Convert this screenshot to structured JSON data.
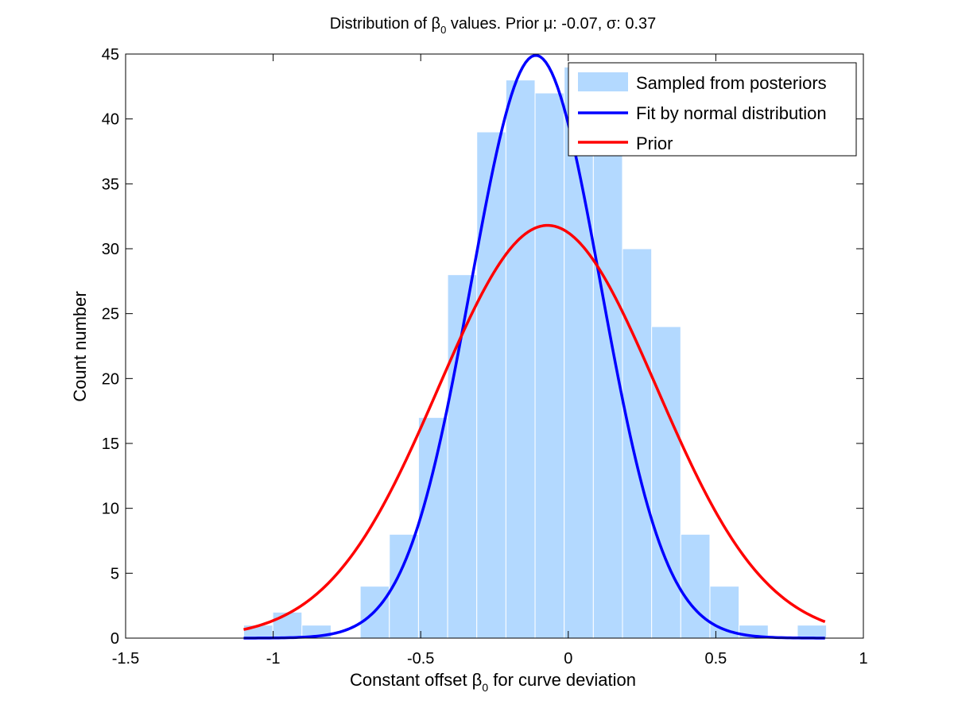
{
  "chart_data": {
    "type": "bar",
    "title": {
      "main": "Distribution of β",
      "sub": "0",
      "rest": " values. Prior μ: -0.07, σ: 0.37"
    },
    "xlabel": {
      "main": "Constant offset β",
      "sub": "0",
      "rest": " for curve deviation"
    },
    "ylabel": "Count number",
    "xlim": [
      -1.5,
      1
    ],
    "ylim": [
      0,
      45
    ],
    "xticks": [
      -1.5,
      -1,
      -0.5,
      0,
      0.5,
      1
    ],
    "xtick_labels": [
      "-1.5",
      "-1",
      "-0.5",
      "0",
      "0.5",
      "1"
    ],
    "yticks": [
      0,
      5,
      10,
      15,
      20,
      25,
      30,
      35,
      40,
      45
    ],
    "ytick_labels": [
      "0",
      "5",
      "10",
      "15",
      "20",
      "25",
      "30",
      "35",
      "40",
      "45"
    ],
    "grid": false,
    "legend_position": "top-right",
    "histogram": {
      "name": "Sampled from posteriors",
      "color": "#b3d9ff",
      "bin_start": -1.1,
      "bin_width": 0.09875,
      "counts": [
        1,
        2,
        1,
        0,
        4,
        8,
        17,
        28,
        39,
        43,
        42,
        44,
        39,
        30,
        24,
        8,
        4,
        1,
        0,
        1
      ]
    },
    "series": [
      {
        "name": "Fit by normal distribution",
        "type": "line",
        "color": "#0000ff",
        "x_range": [
          -1.1,
          0.87
        ],
        "mu": -0.11,
        "sigma": 0.22,
        "peak": 44.9
      },
      {
        "name": "Prior",
        "type": "line",
        "color": "#ff0000",
        "x_range": [
          -1.1,
          0.87
        ],
        "mu": -0.07,
        "sigma": 0.37,
        "peak": 31.8
      }
    ]
  }
}
